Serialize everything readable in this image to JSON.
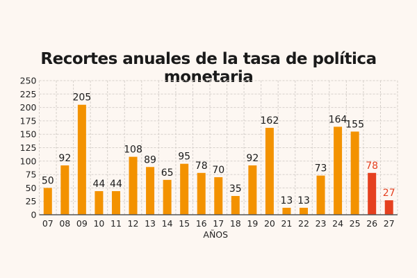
{
  "chart_data": {
    "type": "bar",
    "title": "Recortes anuales de la tasa de política monetaria",
    "xlabel": "AÑOS",
    "ylabel": "",
    "ylim": [
      0,
      250
    ],
    "yticks": [
      0,
      25,
      50,
      75,
      100,
      125,
      150,
      175,
      200,
      225,
      250
    ],
    "grid": true,
    "categories": [
      "07",
      "08",
      "09",
      "10",
      "11",
      "12",
      "13",
      "14",
      "15",
      "16",
      "17",
      "18",
      "19",
      "20",
      "21",
      "22",
      "23",
      "24",
      "25",
      "26",
      "27"
    ],
    "values": [
      50,
      92,
      205,
      44,
      44,
      108,
      89,
      65,
      95,
      78,
      70,
      35,
      92,
      162,
      13,
      13,
      73,
      164,
      155,
      78,
      27
    ],
    "highlighted": [
      "26",
      "27"
    ],
    "colors": {
      "default": "#f39200",
      "highlight": "#e5401f",
      "label_default": "#1a1a1a",
      "label_highlight": "#e5401f",
      "background": "#fdf7f2"
    }
  }
}
